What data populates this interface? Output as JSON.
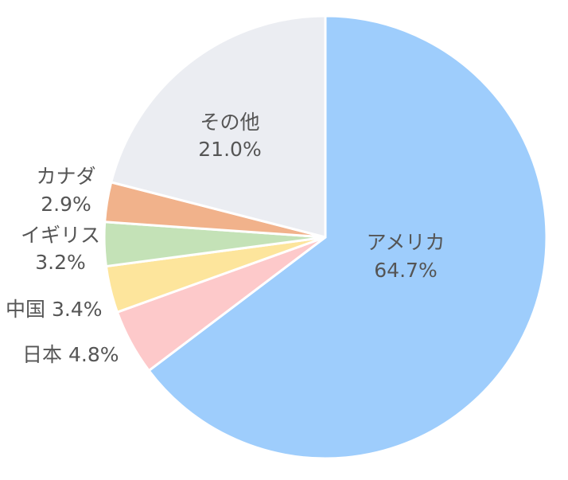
{
  "chart_data": {
    "type": "pie",
    "slices": [
      {
        "name": "アメリカ",
        "percent_label": "64.7%",
        "value": 64.7,
        "color": "#9ecdfc"
      },
      {
        "name": "日本",
        "percent_label": "4.8%",
        "value": 4.8,
        "color": "#fdc9ca"
      },
      {
        "name": "中国",
        "percent_label": "3.4%",
        "value": 3.4,
        "color": "#fde59c"
      },
      {
        "name": "イギリス",
        "percent_label": "3.2%",
        "value": 3.2,
        "color": "#c4e2b7"
      },
      {
        "name": "カナダ",
        "percent_label": "2.9%",
        "value": 2.9,
        "color": "#f1b28b"
      },
      {
        "name": "その他",
        "percent_label": "21.0%",
        "value": 21.0,
        "color": "#ebedf2"
      }
    ],
    "start_angle": "12 o'clock",
    "direction": "clockwise",
    "legend": "none"
  }
}
